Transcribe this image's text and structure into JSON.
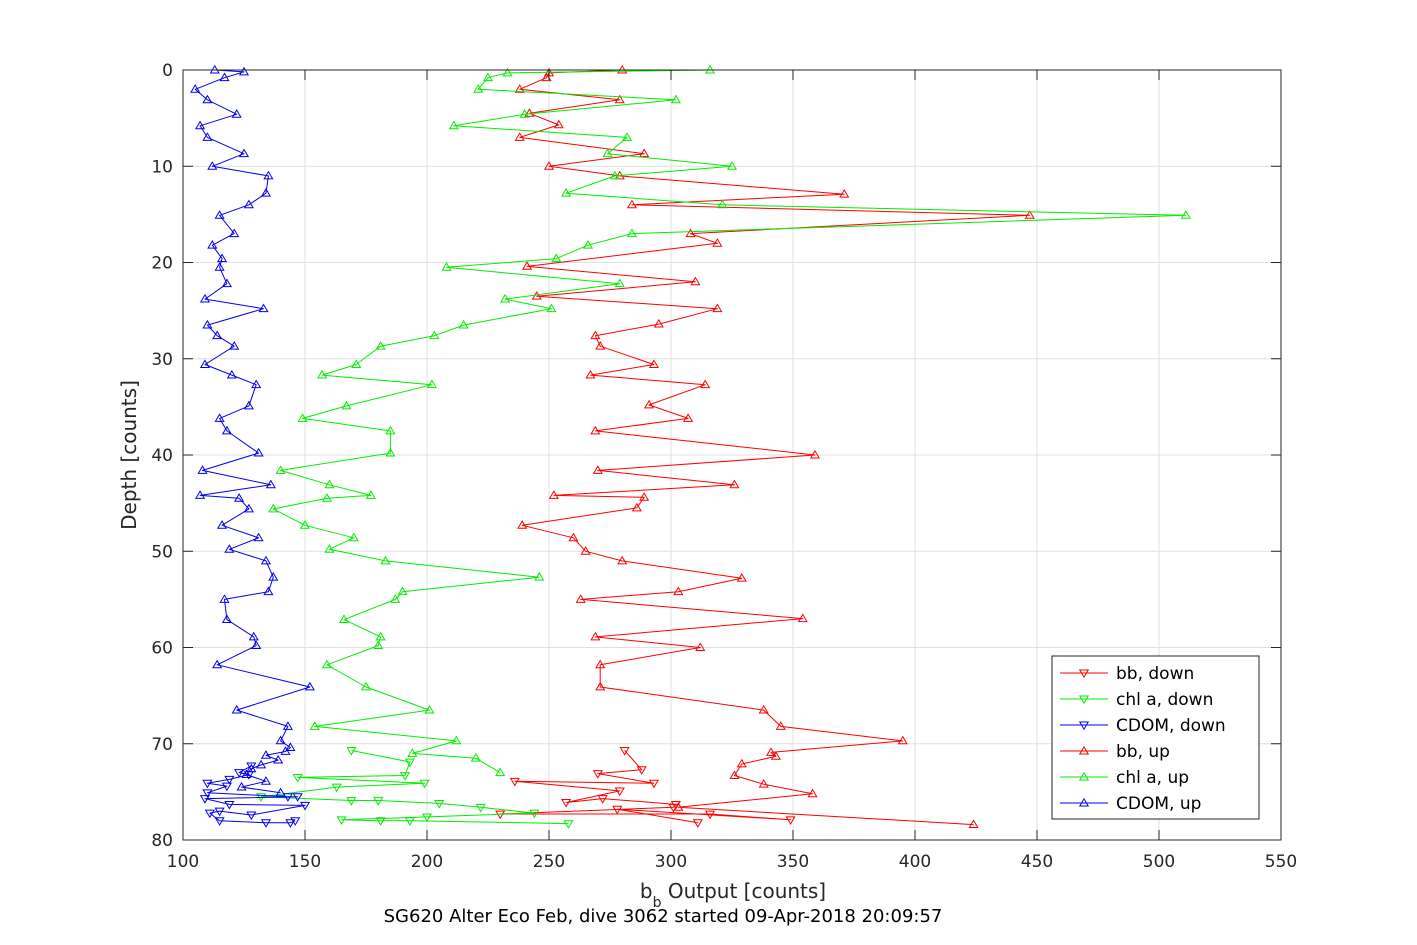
{
  "chart_data": {
    "type": "line",
    "title": "SG620 Alter Eco Feb, dive 3062 started 09-Apr-2018 20:09:57",
    "xlabel_main": "b",
    "xlabel_sub": "b",
    "xlabel_rest": " Output [counts]",
    "ylabel": "Depth [counts]",
    "xlim": [
      100,
      550
    ],
    "ylim": [
      0,
      80
    ],
    "y_reversed": true,
    "grid": true,
    "legend_position": "bottom-right",
    "x_ticks": [
      100,
      150,
      200,
      250,
      300,
      350,
      400,
      450,
      500,
      550
    ],
    "y_ticks": [
      0,
      10,
      20,
      30,
      40,
      50,
      60,
      70,
      80
    ],
    "x_tick_labels": [
      "100",
      "150",
      "200",
      "250",
      "300",
      "350",
      "400",
      "450",
      "500",
      "550"
    ],
    "y_tick_labels": [
      "0",
      "10",
      "20",
      "30",
      "40",
      "50",
      "60",
      "70",
      "80"
    ],
    "series": [
      {
        "name": "bb, down",
        "color": "#ff0000",
        "marker": "triangle-down",
        "x": [
          281,
          288,
          270,
          293,
          236,
          279,
          257,
          272,
          302,
          301,
          230,
          316,
          349,
          278,
          311
        ],
        "y": [
          70.7,
          72.7,
          73.1,
          74.1,
          73.9,
          74.9,
          76.1,
          75.7,
          76.3,
          76.6,
          77.3,
          77.3,
          77.9,
          76.8,
          78.2
        ]
      },
      {
        "name": "chl a, down",
        "color": "#00ee00",
        "marker": "triangle-down",
        "x": [
          169,
          193,
          191,
          147,
          199,
          163,
          132,
          169,
          180,
          205,
          222,
          244,
          200,
          165,
          181,
          193,
          258
        ],
        "y": [
          70.7,
          71.9,
          73.3,
          73.5,
          74.1,
          74.5,
          75.5,
          75.9,
          75.9,
          76.2,
          76.6,
          77.2,
          77.6,
          77.9,
          78.0,
          78.0,
          78.3
        ]
      },
      {
        "name": "CDOM, down",
        "color": "#0000ee",
        "marker": "triangle-down",
        "x": [
          128,
          123,
          127,
          119,
          110,
          118,
          110,
          143,
          147,
          109,
          119,
          150,
          128,
          115,
          111,
          115,
          134,
          144,
          146
        ],
        "y": [
          72.3,
          73.0,
          73.2,
          73.7,
          74.1,
          74.4,
          75.1,
          75.5,
          75.5,
          75.7,
          76.3,
          76.4,
          77.4,
          77.0,
          77.2,
          78.0,
          78.2,
          78.2,
          78.0
        ]
      },
      {
        "name": "bb, up",
        "color": "#ff0000",
        "marker": "triangle-up",
        "x": [
          280,
          250,
          249,
          238,
          279,
          242,
          254,
          238,
          289,
          250,
          279,
          371,
          284,
          447,
          308,
          319,
          241,
          310,
          245,
          319,
          295,
          269,
          271,
          293,
          267,
          314,
          291,
          307,
          269,
          359,
          270,
          326,
          252,
          289,
          286,
          239,
          260,
          265,
          280,
          329,
          303,
          263,
          354,
          269,
          312,
          271,
          271,
          338,
          345,
          395,
          341,
          343,
          329,
          326,
          338,
          358,
          303,
          424
        ],
        "y": [
          0,
          0.3,
          0.8,
          2.0,
          3.1,
          4.5,
          5.7,
          7.0,
          8.7,
          10.0,
          11.0,
          12.9,
          14.0,
          15.1,
          17.0,
          18.0,
          20.4,
          22.0,
          23.5,
          24.8,
          26.4,
          27.6,
          28.7,
          30.6,
          31.7,
          32.7,
          34.8,
          36.2,
          37.5,
          40.0,
          41.6,
          43.1,
          44.2,
          44.4,
          45.5,
          47.3,
          48.6,
          50.0,
          51.0,
          52.8,
          54.2,
          55.0,
          57.0,
          58.9,
          60.0,
          61.8,
          64.1,
          66.5,
          68.2,
          69.7,
          70.9,
          71.3,
          72.1,
          73.3,
          74.2,
          75.2,
          76.6,
          78.4
        ]
      },
      {
        "name": "chl a, up",
        "color": "#00ee00",
        "marker": "triangle-up",
        "x": [
          316,
          233,
          225,
          221,
          302,
          240,
          211,
          282,
          274,
          325,
          277,
          257,
          321,
          511,
          284,
          266,
          253,
          208,
          279,
          232,
          251,
          215,
          203,
          181,
          171,
          157,
          202,
          167,
          149,
          185,
          185,
          140,
          160,
          177,
          159,
          137,
          150,
          170,
          160,
          183,
          246,
          190,
          187,
          166,
          181,
          180,
          159,
          175,
          201,
          154,
          212,
          194,
          220,
          230
        ],
        "y": [
          0,
          0.3,
          0.8,
          2.0,
          3.1,
          4.6,
          5.8,
          7.0,
          8.7,
          10.0,
          11.0,
          12.8,
          14.0,
          15.1,
          17.0,
          18.2,
          19.6,
          20.5,
          22.2,
          23.8,
          24.8,
          26.5,
          27.6,
          28.7,
          30.6,
          31.7,
          32.7,
          34.9,
          36.2,
          37.5,
          39.8,
          41.6,
          43.1,
          44.2,
          44.5,
          45.6,
          47.3,
          48.6,
          49.8,
          51.0,
          52.7,
          54.2,
          55.0,
          57.1,
          58.9,
          59.8,
          61.8,
          64.1,
          66.5,
          68.2,
          69.7,
          71.0,
          71.5,
          73.0
        ]
      },
      {
        "name": "CDOM, up",
        "color": "#0000ee",
        "marker": "triangle-up",
        "x": [
          113,
          125,
          117,
          105,
          110,
          122,
          107,
          110,
          125,
          112,
          135,
          134,
          127,
          115,
          121,
          112,
          116,
          115,
          118,
          109,
          133,
          110,
          114,
          121,
          109,
          120,
          130,
          127,
          115,
          118,
          131,
          108,
          136,
          107,
          123,
          127,
          116,
          131,
          119,
          134,
          137,
          135,
          117,
          118,
          129,
          130,
          114,
          152,
          122,
          143,
          140,
          144,
          142,
          134,
          139,
          132,
          128,
          126,
          134,
          124,
          140
        ],
        "y": [
          0,
          0.2,
          0.8,
          2.0,
          3.1,
          4.6,
          5.8,
          7.0,
          8.7,
          10.0,
          11.0,
          12.8,
          14.0,
          15.1,
          17.0,
          18.2,
          19.6,
          20.5,
          22.2,
          23.8,
          24.8,
          26.5,
          27.6,
          28.7,
          30.6,
          31.7,
          32.7,
          34.9,
          36.2,
          37.5,
          39.8,
          41.6,
          43.1,
          44.2,
          44.5,
          45.6,
          47.3,
          48.6,
          49.8,
          51.0,
          52.7,
          54.2,
          55.0,
          57.1,
          58.9,
          59.8,
          61.8,
          64.1,
          66.5,
          68.2,
          69.7,
          70.4,
          70.8,
          71.2,
          71.7,
          72.2,
          72.6,
          73.2,
          73.9,
          74.5,
          75.1
        ]
      }
    ]
  }
}
